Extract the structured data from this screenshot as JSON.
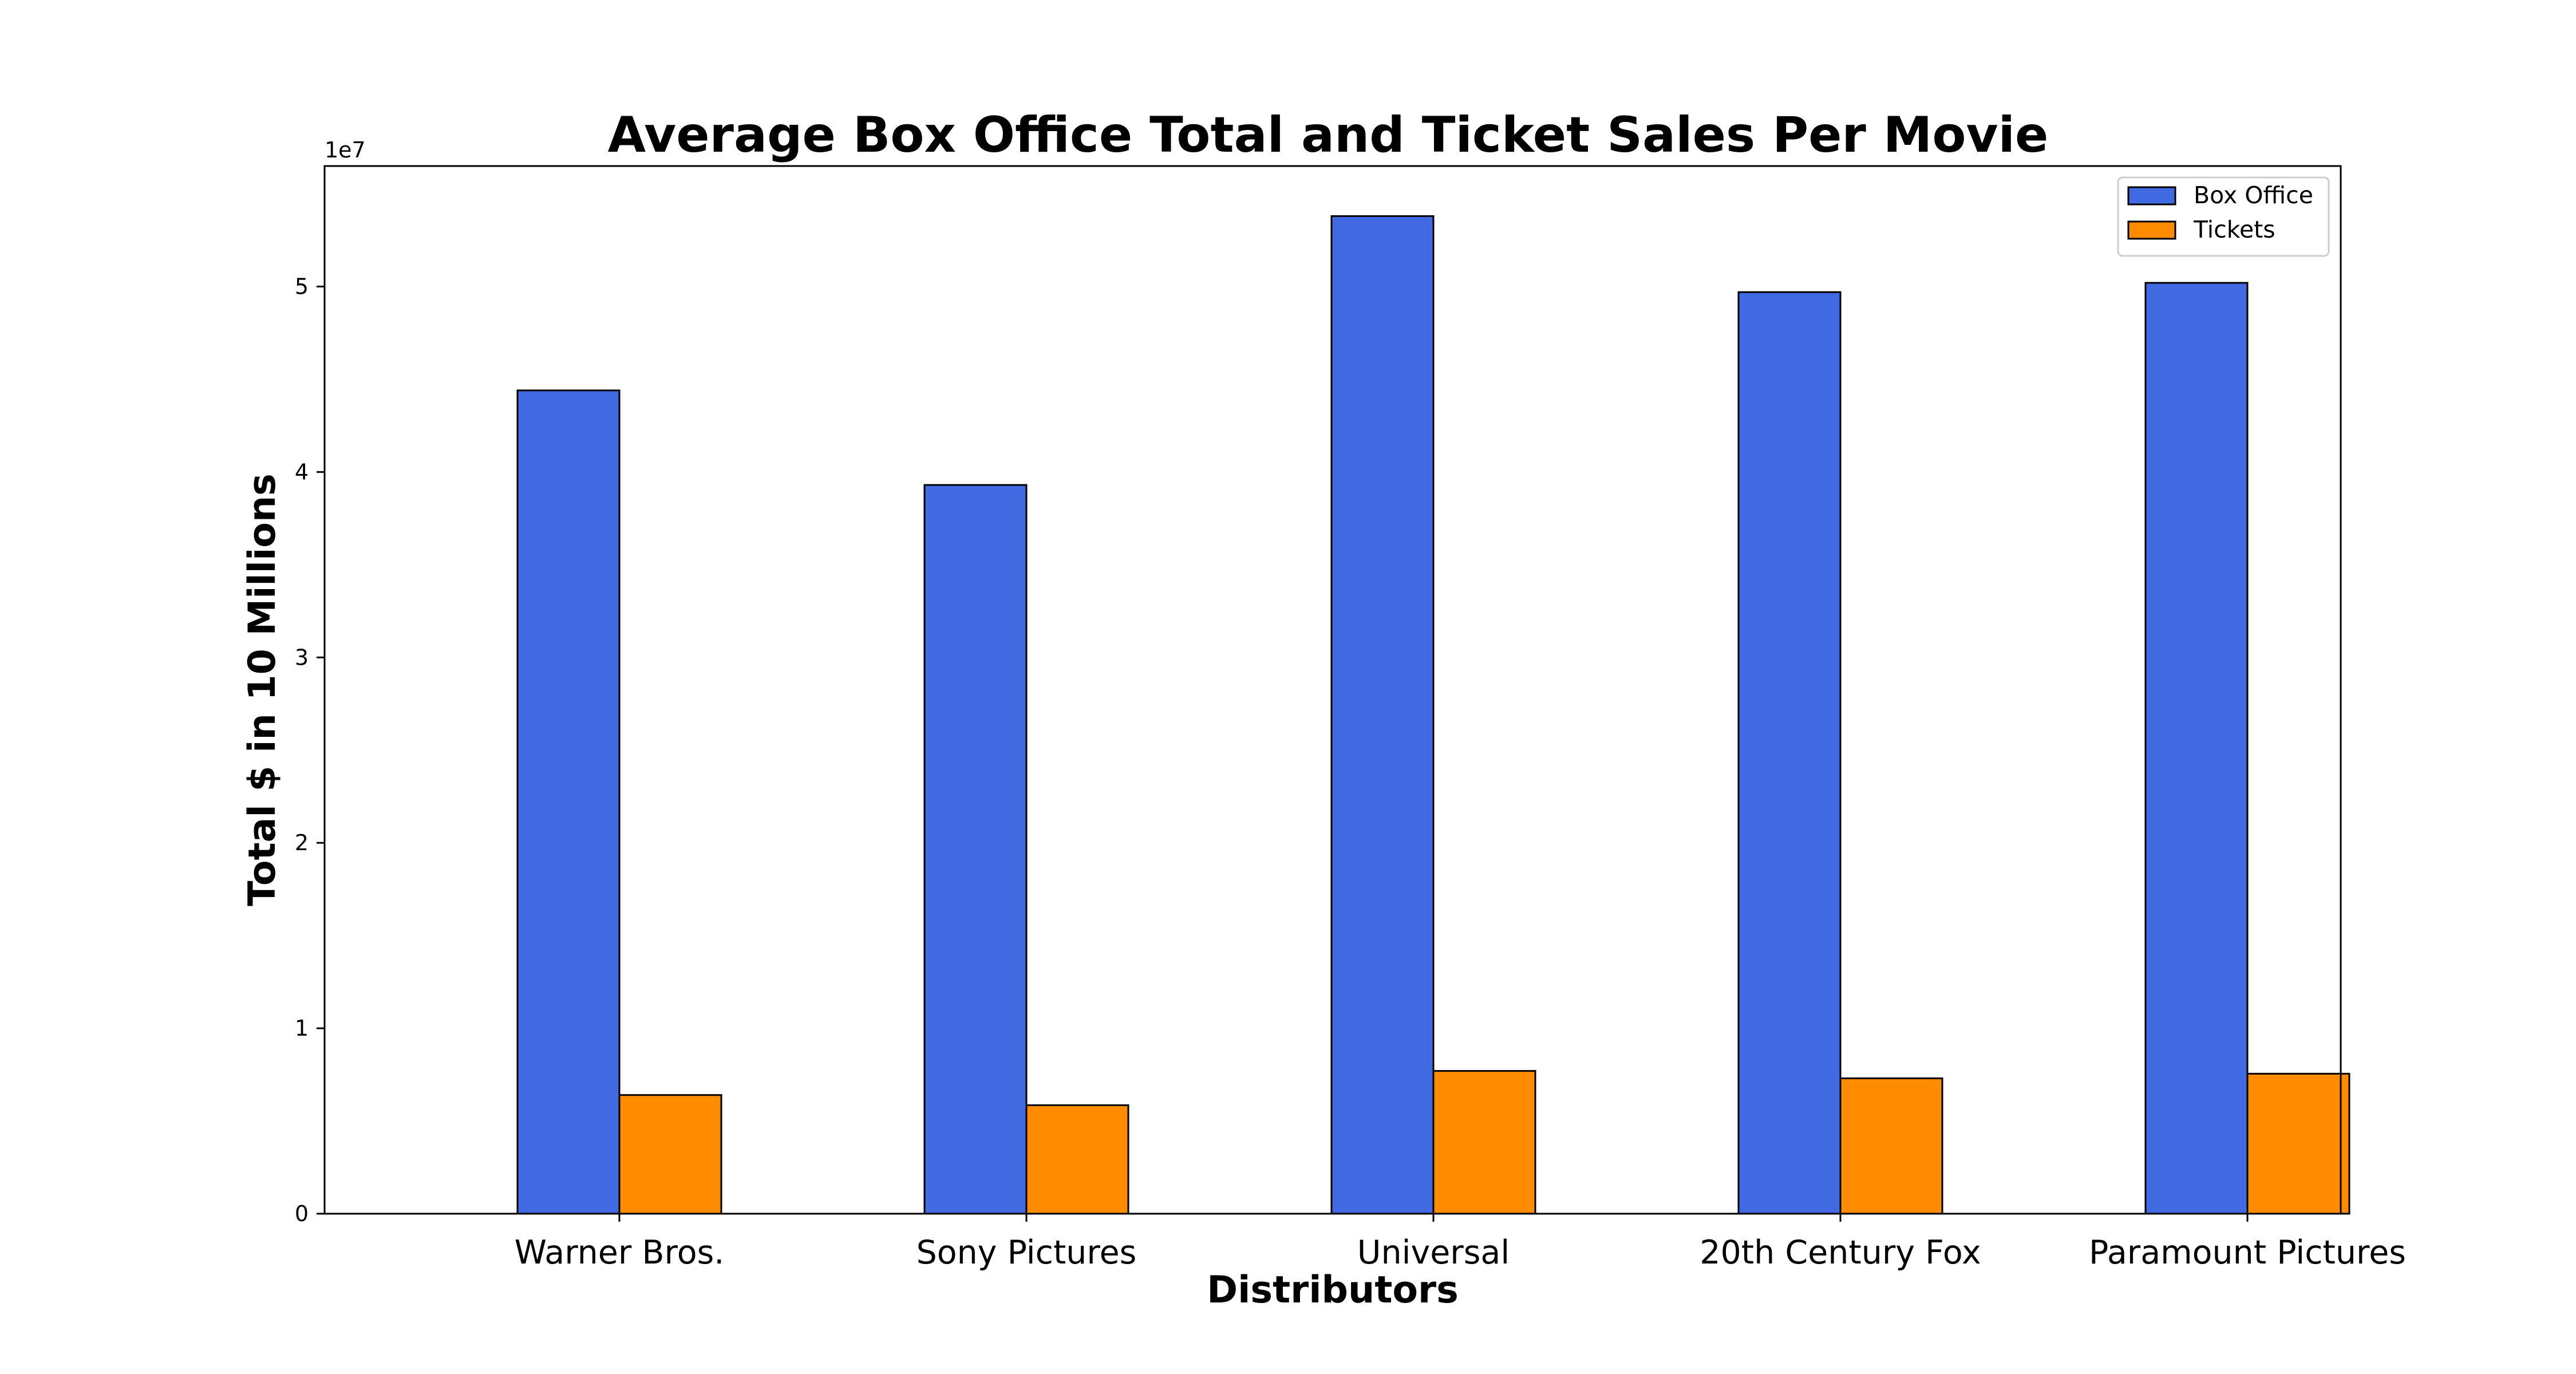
{
  "chart_data": {
    "type": "bar",
    "title": "Average Box Office Total and Ticket Sales Per Movie",
    "xlabel": "Distributors",
    "ylabel": "Total $ in 10 Millions",
    "y_offset_label": "1e7",
    "categories": [
      "Warner Bros.",
      "Sony Pictures",
      "Universal",
      "20th Century Fox",
      "Paramount Pictures"
    ],
    "series": [
      {
        "name": "Box Office",
        "color": "#4169e1",
        "values": [
          44400000,
          39300000,
          53800000,
          49700000,
          50200000
        ]
      },
      {
        "name": "Tickets",
        "color": "#ff8c00",
        "values": [
          6400000,
          5850000,
          7700000,
          7300000,
          7550000
        ]
      }
    ],
    "ylim": [
      0,
      56500000
    ],
    "yticks": [
      0,
      10000000,
      20000000,
      30000000,
      40000000,
      50000000
    ],
    "ytick_labels": [
      "0",
      "1",
      "2",
      "3",
      "4",
      "5"
    ],
    "legend_position": "top-right",
    "grid": false
  }
}
